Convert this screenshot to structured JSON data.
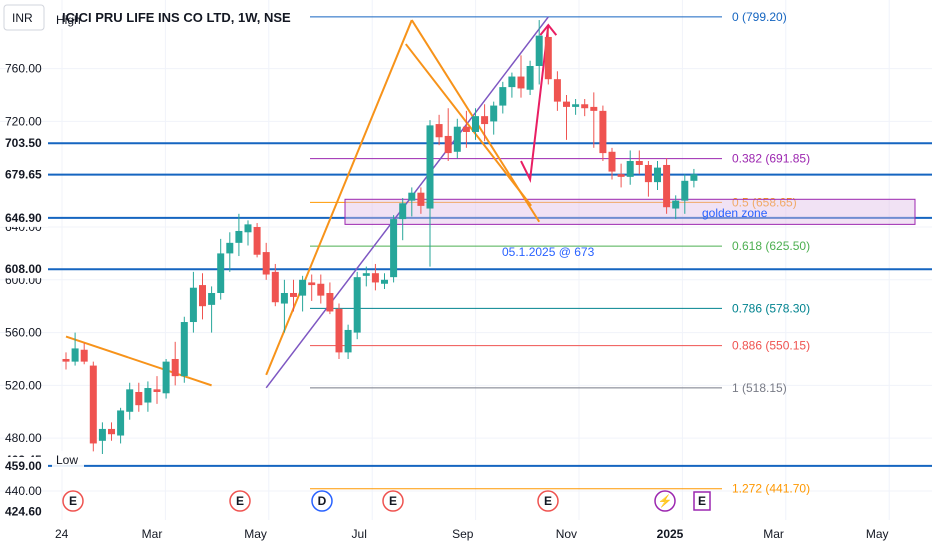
{
  "header": {
    "currency_badge": "INR",
    "symbol_line": "ICICI PRU LIFE INS CO LTD, 1W, NSE"
  },
  "colors": {
    "up": "#26a69a",
    "down": "#ef5350",
    "hline": "#1565c0",
    "wedge": "#f7931a",
    "trend": "#7e57c2",
    "arrow": "#e91e63",
    "zone_fill": "#e1bee7",
    "zone_stroke": "#9c27b0"
  },
  "chart_data": {
    "type": "candlestick",
    "title": "ICICI PRU LIFE INS CO LTD, 1W, NSE",
    "timeframe": "1W",
    "ylim": [
      418,
      812
    ],
    "price_ticks": [
      760.0,
      720.0,
      680.0,
      640.0,
      600.0,
      560.0,
      520.0,
      480.0,
      440.0
    ],
    "time_labels": [
      "24",
      "Mar",
      "May",
      "Jul",
      "Sep",
      "Nov",
      "2025",
      "Mar",
      "May"
    ],
    "price_badges": [
      {
        "value": "796.80",
        "tag": "High"
      },
      {
        "value": "703.50",
        "tag": ""
      },
      {
        "value": "679.65",
        "tag": ""
      },
      {
        "value": "646.90",
        "tag": ""
      },
      {
        "value": "608.00",
        "tag": ""
      },
      {
        "value": "463.45",
        "tag": "Low"
      },
      {
        "value": "459.00",
        "tag": ""
      },
      {
        "value": "424.60",
        "tag": ""
      }
    ],
    "horizontal_levels": [
      703.5,
      679.65,
      646.9,
      608.0,
      459.0
    ],
    "candles": [
      [
        540,
        545,
        532,
        538
      ],
      [
        538,
        560,
        535,
        548
      ],
      [
        547,
        552,
        536,
        538
      ],
      [
        535,
        538,
        470,
        476
      ],
      [
        478,
        492,
        468,
        487
      ],
      [
        487,
        492,
        478,
        483
      ],
      [
        482,
        503,
        476,
        501
      ],
      [
        500,
        522,
        494,
        517
      ],
      [
        515,
        522,
        500,
        505
      ],
      [
        507,
        523,
        500,
        518
      ],
      [
        517,
        527,
        506,
        515
      ],
      [
        514,
        540,
        510,
        538
      ],
      [
        540,
        553,
        520,
        527
      ],
      [
        527,
        572,
        522,
        568
      ],
      [
        568,
        606,
        560,
        594
      ],
      [
        596,
        605,
        570,
        580
      ],
      [
        581,
        595,
        560,
        590
      ],
      [
        590,
        631,
        585,
        620
      ],
      [
        620,
        636,
        606,
        628
      ],
      [
        628,
        650,
        618,
        637
      ],
      [
        636,
        645,
        626,
        642
      ],
      [
        640,
        643,
        617,
        619
      ],
      [
        621,
        628,
        600,
        604
      ],
      [
        606,
        612,
        580,
        583
      ],
      [
        582,
        600,
        560,
        590
      ],
      [
        590,
        600,
        576,
        587
      ],
      [
        588,
        603,
        576,
        600
      ],
      [
        598,
        604,
        584,
        596
      ],
      [
        597,
        604,
        582,
        588
      ],
      [
        590,
        598,
        574,
        576
      ],
      [
        578,
        582,
        540,
        545
      ],
      [
        545,
        566,
        540,
        562
      ],
      [
        560,
        606,
        555,
        602
      ],
      [
        603,
        610,
        595,
        605
      ],
      [
        605,
        612,
        592,
        598
      ],
      [
        597,
        605,
        593,
        600
      ],
      [
        602,
        649,
        598,
        646
      ],
      [
        646,
        662,
        630,
        658
      ],
      [
        660,
        670,
        648,
        666
      ],
      [
        666,
        670,
        650,
        656
      ],
      [
        654,
        721,
        610,
        717
      ],
      [
        718,
        725,
        702,
        708
      ],
      [
        709,
        730,
        690,
        696
      ],
      [
        697,
        722,
        692,
        716
      ],
      [
        716,
        728,
        700,
        712
      ],
      [
        712,
        730,
        706,
        724
      ],
      [
        724,
        733,
        705,
        718
      ],
      [
        720,
        735,
        710,
        732
      ],
      [
        732,
        750,
        726,
        746
      ],
      [
        746,
        757,
        738,
        754
      ],
      [
        754,
        770,
        738,
        745
      ],
      [
        744,
        766,
        740,
        762
      ],
      [
        762,
        796.8,
        748,
        785
      ],
      [
        784,
        790,
        748,
        752
      ],
      [
        752,
        758,
        728,
        735
      ],
      [
        735,
        740,
        706,
        731
      ],
      [
        731,
        737,
        725,
        733
      ],
      [
        733,
        737,
        724,
        730
      ],
      [
        731,
        742,
        700,
        728
      ],
      [
        728,
        732,
        690,
        696
      ],
      [
        697,
        700,
        676,
        682
      ],
      [
        680,
        688,
        670,
        678
      ],
      [
        678,
        698,
        672,
        690
      ],
      [
        690,
        698,
        680,
        687
      ],
      [
        687,
        690,
        663,
        674
      ],
      [
        674,
        690,
        668,
        685
      ],
      [
        687,
        692,
        650,
        655
      ],
      [
        654,
        664,
        646,
        660
      ],
      [
        660,
        680,
        650,
        675
      ],
      [
        675,
        684,
        670,
        680
      ]
    ],
    "trendlines": [
      {
        "id": "ascending-line",
        "points": [
          [
            "2024-06-03",
            518.15
          ],
          [
            "2025-01-06",
            799.2
          ]
        ]
      },
      {
        "id": "left-resistance",
        "points": [
          [
            "2024-01-01",
            557
          ],
          [
            "2024-04-22",
            520
          ]
        ]
      },
      {
        "id": "wedge-lower",
        "points": [
          [
            "2024-06-03",
            528
          ],
          [
            "2024-09-23",
            796.8
          ]
        ]
      },
      {
        "id": "wedge-upper-channel",
        "points": [
          [
            "2024-09-23",
            796.8
          ],
          [
            "2024-12-30",
            644
          ]
        ]
      },
      {
        "id": "projection-arrow",
        "points": [
          [
            "2024-12-16",
            690
          ],
          [
            "2024-12-23",
            676
          ],
          [
            "2025-01-06",
            793
          ]
        ]
      }
    ],
    "fib_retracement": [
      {
        "level": "0",
        "price": 799.2,
        "label": "0 (799.20)",
        "color": "#1565c0"
      },
      {
        "level": "0.382",
        "price": 691.85,
        "label": "0.382 (691.85)",
        "color": "#9c27b0"
      },
      {
        "level": "0.5",
        "price": 658.65,
        "label": "0.5 (658.65)",
        "color": "#ff9800"
      },
      {
        "level": "0.618",
        "price": 625.5,
        "label": "0.618 (625.50)",
        "color": "#4caf50"
      },
      {
        "level": "0.786",
        "price": 578.3,
        "label": "0.786 (578.30)",
        "color": "#00838f"
      },
      {
        "level": "0.886",
        "price": 550.15,
        "label": "0.886 (550.15)",
        "color": "#ef5350"
      },
      {
        "level": "1",
        "price": 518.15,
        "label": "1 (518.15)",
        "color": "#787b86"
      },
      {
        "level": "1.272",
        "price": 441.7,
        "label": "1.272 (441.70)",
        "color": "#ff9800"
      }
    ],
    "golden_zone": {
      "label": "golden zone",
      "top": 661,
      "bottom": 642
    },
    "annotation": "05.1.2025 @ 673",
    "event_markers": [
      {
        "letter": "E",
        "color": "#ef5350"
      },
      {
        "letter": "E",
        "color": "#ef5350"
      },
      {
        "letter": "D",
        "color": "#2962ff"
      },
      {
        "letter": "E",
        "color": "#ef5350"
      },
      {
        "letter": "E",
        "color": "#ef5350"
      },
      {
        "letter": "⚡",
        "color": "#9c27b0"
      },
      {
        "letter": "E",
        "color": "#9c27b0"
      }
    ]
  }
}
